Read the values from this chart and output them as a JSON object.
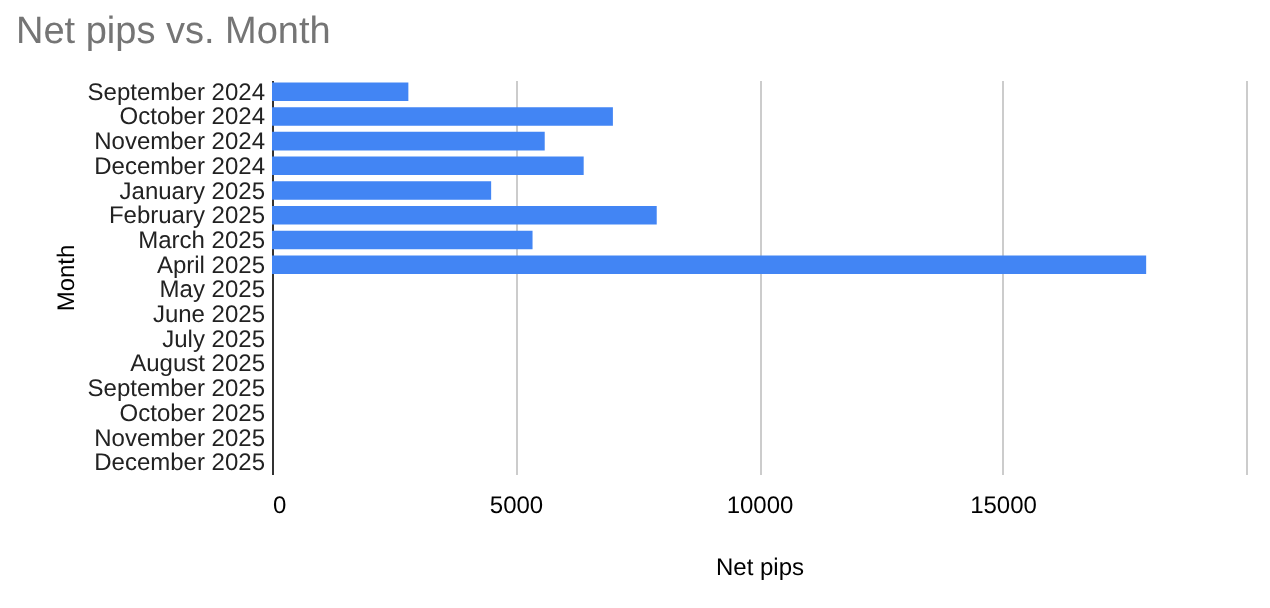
{
  "chart_data": {
    "type": "bar",
    "orientation": "horizontal",
    "title": "Net pips vs. Month",
    "xlabel": "Net pips",
    "ylabel": "Month",
    "categories": [
      "September 2024",
      "October 2024",
      "November 2024",
      "December 2024",
      "January 2025",
      "February 2025",
      "March 2025",
      "April 2025",
      "May 2025",
      "June 2025",
      "July 2025",
      "August 2025",
      "September 2025",
      "October 2025",
      "November 2025",
      "December 2025"
    ],
    "values": [
      2800,
      7000,
      5600,
      6400,
      4500,
      7900,
      5350,
      17950,
      null,
      null,
      null,
      null,
      null,
      null,
      null,
      null
    ],
    "color": "#4285f4",
    "xlim": [
      0,
      20000
    ],
    "xticks": [
      0,
      5000,
      10000,
      15000,
      {
        "value": 20000,
        "label": null
      }
    ],
    "grid": "x"
  }
}
